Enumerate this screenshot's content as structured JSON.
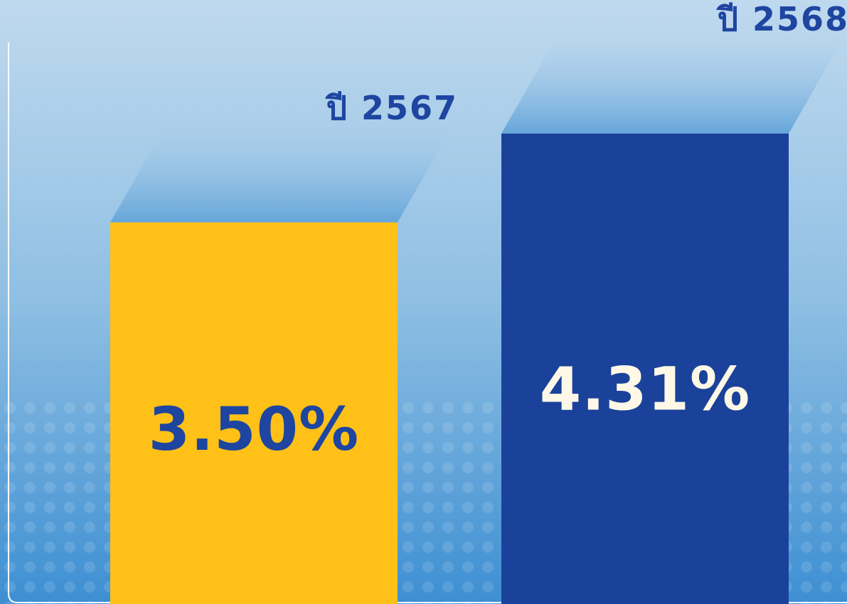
{
  "chart_data": {
    "type": "bar",
    "categories": [
      "ปี 2567",
      "ปี 2568"
    ],
    "values": [
      3.5,
      4.31
    ],
    "value_labels": [
      "3.50%",
      "4.31%"
    ],
    "colors": [
      "#FFC118",
      "#1A429A"
    ],
    "label_colors": [
      "#1E45A0",
      "#FFF8E7"
    ]
  }
}
